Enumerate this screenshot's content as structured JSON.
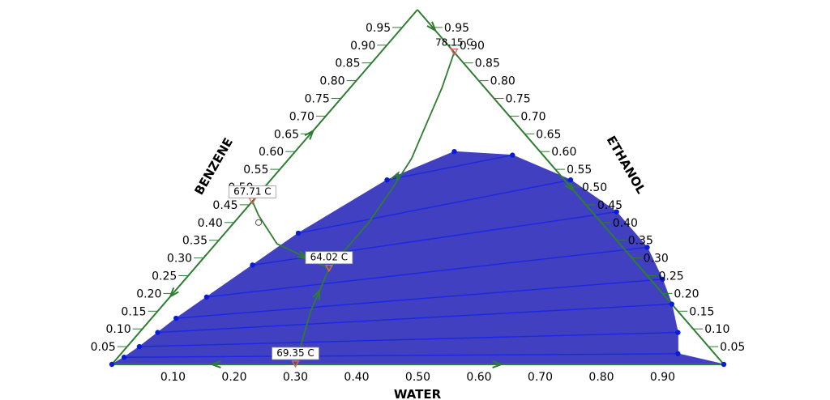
{
  "chart_data": {
    "type": "ternary",
    "components": [
      "WATER",
      "BENZENE",
      "ETHANOL"
    ],
    "axes": {
      "bottom": {
        "label": "WATER",
        "ticks": [
          "0.10",
          "0.20",
          "0.30",
          "0.40",
          "0.50",
          "0.60",
          "0.70",
          "0.80",
          "0.90"
        ]
      },
      "left": {
        "label": "BENZENE",
        "ticks": [
          "0.05",
          "0.10",
          "0.15",
          "0.20",
          "0.25",
          "0.30",
          "0.35",
          "0.40",
          "0.45",
          "0.50",
          "0.55",
          "0.60",
          "0.65",
          "0.70",
          "0.75",
          "0.80",
          "0.85",
          "0.90",
          "0.95"
        ]
      },
      "right": {
        "label": "ETHANOL",
        "ticks": [
          "0.95",
          "0.90",
          "0.85",
          "0.80",
          "0.75",
          "0.70",
          "0.65",
          "0.60",
          "0.55",
          "0.50",
          "0.45",
          "0.40",
          "0.35",
          "0.30",
          "0.25",
          "0.20",
          "0.15",
          "0.10",
          "0.05"
        ]
      }
    },
    "envelope": [
      {
        "water": 0.0,
        "ethanol": 0.0
      },
      {
        "water": 0.01,
        "ethanol": 0.02
      },
      {
        "water": 0.02,
        "ethanol": 0.05
      },
      {
        "water": 0.03,
        "ethanol": 0.09
      },
      {
        "water": 0.04,
        "ethanol": 0.13
      },
      {
        "water": 0.06,
        "ethanol": 0.19
      },
      {
        "water": 0.09,
        "ethanol": 0.28
      },
      {
        "water": 0.12,
        "ethanol": 0.37
      },
      {
        "water": 0.19,
        "ethanol": 0.52
      },
      {
        "water": 0.26,
        "ethanol": 0.6
      },
      {
        "water": 0.36,
        "ethanol": 0.59
      },
      {
        "water": 0.49,
        "ethanol": 0.52
      },
      {
        "water": 0.61,
        "ethanol": 0.43
      },
      {
        "water": 0.71,
        "ethanol": 0.33
      },
      {
        "water": 0.78,
        "ethanol": 0.24
      },
      {
        "water": 0.83,
        "ethanol": 0.17
      },
      {
        "water": 0.88,
        "ethanol": 0.09
      },
      {
        "water": 0.91,
        "ethanol": 0.03
      },
      {
        "water": 1.0,
        "ethanol": 0.0
      }
    ],
    "tie_lines": [
      [
        {
          "water": 0.01,
          "ethanol": 0.02
        },
        {
          "water": 0.91,
          "ethanol": 0.03
        }
      ],
      [
        {
          "water": 0.02,
          "ethanol": 0.05
        },
        {
          "water": 0.88,
          "ethanol": 0.09
        }
      ],
      [
        {
          "water": 0.03,
          "ethanol": 0.09
        },
        {
          "water": 0.83,
          "ethanol": 0.17
        }
      ],
      [
        {
          "water": 0.04,
          "ethanol": 0.13
        },
        {
          "water": 0.78,
          "ethanol": 0.24
        }
      ],
      [
        {
          "water": 0.06,
          "ethanol": 0.19
        },
        {
          "water": 0.71,
          "ethanol": 0.33
        }
      ],
      [
        {
          "water": 0.09,
          "ethanol": 0.28
        },
        {
          "water": 0.61,
          "ethanol": 0.43
        }
      ],
      [
        {
          "water": 0.12,
          "ethanol": 0.37
        },
        {
          "water": 0.49,
          "ethanol": 0.52
        }
      ],
      [
        {
          "water": 0.19,
          "ethanol": 0.52
        },
        {
          "water": 0.36,
          "ethanol": 0.59
        }
      ]
    ],
    "azeotropes": [
      {
        "label": "78.15 C",
        "water": 0.12,
        "ethanol": 0.88
      },
      {
        "label": "67.71 C",
        "water": 0.0,
        "ethanol": 0.46
      },
      {
        "label": "64.02 C",
        "water": 0.22,
        "ethanol": 0.27
      },
      {
        "label": "69.35 C",
        "water": 0.3,
        "ethanol": 0.0
      }
    ],
    "distillation_boundaries": [
      [
        {
          "water": 0.12,
          "ethanol": 0.88
        },
        {
          "water": 0.15,
          "ethanol": 0.78
        },
        {
          "water": 0.18,
          "ethanol": 0.66
        },
        {
          "water": 0.2,
          "ethanol": 0.58
        },
        {
          "water": 0.21,
          "ethanol": 0.5
        },
        {
          "water": 0.22,
          "ethanol": 0.4
        },
        {
          "water": 0.22,
          "ethanol": 0.27
        },
        {
          "water": 0.25,
          "ethanol": 0.15
        },
        {
          "water": 0.28,
          "ethanol": 0.06
        },
        {
          "water": 0.3,
          "ethanol": 0.0
        }
      ],
      [
        {
          "water": 0.0,
          "ethanol": 0.46
        },
        {
          "water": 0.03,
          "ethanol": 0.42
        },
        {
          "water": 0.1,
          "ethanol": 0.34
        },
        {
          "water": 0.22,
          "ethanol": 0.27
        }
      ]
    ],
    "colors": {
      "envelope_fill": "#4040c0",
      "tie_line": "#1a28e6",
      "points": "#0a1cd8",
      "axes": "#2e7d32",
      "azeotrope_marker": "#e06060"
    }
  }
}
